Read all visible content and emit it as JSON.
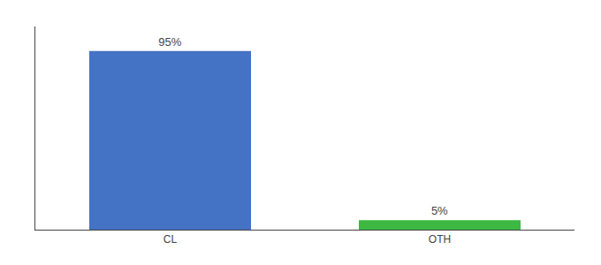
{
  "chart_data": {
    "type": "bar",
    "categories": [
      "CL",
      "OTH"
    ],
    "values": [
      95,
      5
    ],
    "value_labels": [
      "95%",
      "5%"
    ],
    "colors": [
      "#4472c4",
      "#3cb843"
    ],
    "data_labels": true,
    "ylim": [
      0,
      108
    ],
    "tick_labels": "x",
    "grid": false
  }
}
